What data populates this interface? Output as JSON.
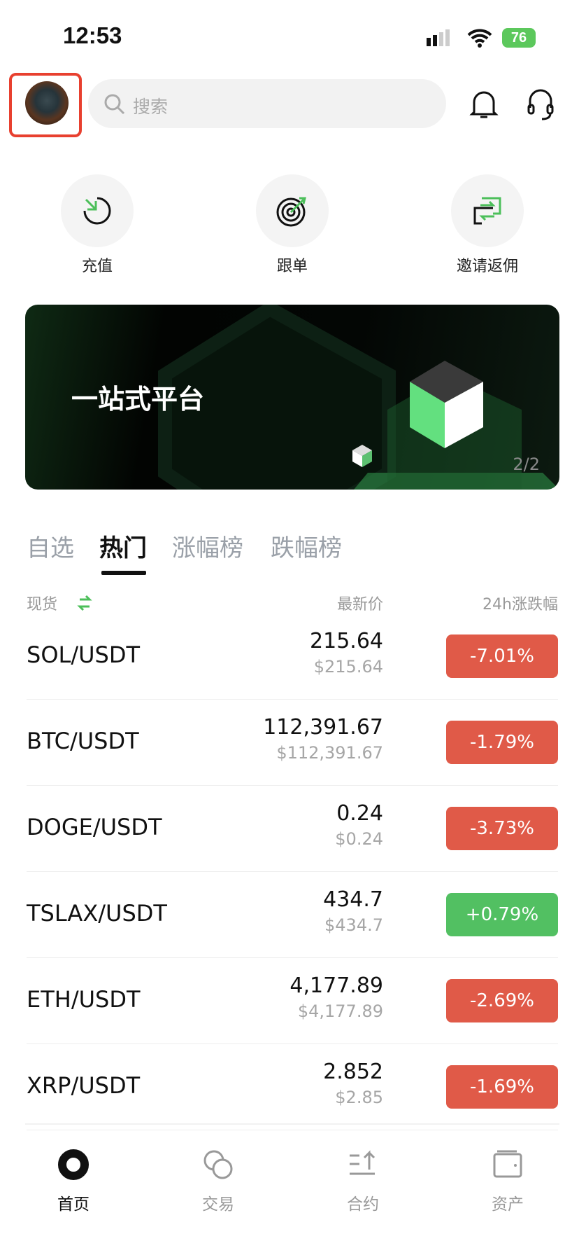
{
  "status_bar": {
    "time": "12:53",
    "battery": "76"
  },
  "header": {
    "search_placeholder": "搜索"
  },
  "quick_actions": [
    {
      "label": "充值",
      "icon": "deposit-icon"
    },
    {
      "label": "跟单",
      "icon": "target-icon"
    },
    {
      "label": "邀请返佣",
      "icon": "invite-swap-icon"
    }
  ],
  "banner": {
    "title": "一站式平台",
    "page_indicator": "2/2"
  },
  "tabs": [
    {
      "label": "自选"
    },
    {
      "label": "热门",
      "active": true
    },
    {
      "label": "涨幅榜"
    },
    {
      "label": "跌幅榜"
    }
  ],
  "list_header": {
    "market": "现货",
    "price": "最新价",
    "change": "24h涨跌幅"
  },
  "colors": {
    "down": "#e05a48",
    "up": "#52c062",
    "accent": "#4cbf5a"
  },
  "rows": [
    {
      "pair": "SOL/USDT",
      "price": "215.64",
      "usd": "$215.64",
      "change": "-7.01%",
      "dir": "down"
    },
    {
      "pair": "BTC/USDT",
      "price": "112,391.67",
      "usd": "$112,391.67",
      "change": "-1.79%",
      "dir": "down"
    },
    {
      "pair": "DOGE/USDT",
      "price": "0.24",
      "usd": "$0.24",
      "change": "-3.73%",
      "dir": "down"
    },
    {
      "pair": "TSLAX/USDT",
      "price": "434.7",
      "usd": "$434.7",
      "change": "+0.79%",
      "dir": "up"
    },
    {
      "pair": "ETH/USDT",
      "price": "4,177.89",
      "usd": "$4,177.89",
      "change": "-2.69%",
      "dir": "down"
    },
    {
      "pair": "XRP/USDT",
      "price": "2.852",
      "usd": "$2.85",
      "change": "-1.69%",
      "dir": "down"
    }
  ],
  "bottom_nav": [
    {
      "label": "首页",
      "active": true
    },
    {
      "label": "交易"
    },
    {
      "label": "合约"
    },
    {
      "label": "资产"
    }
  ]
}
